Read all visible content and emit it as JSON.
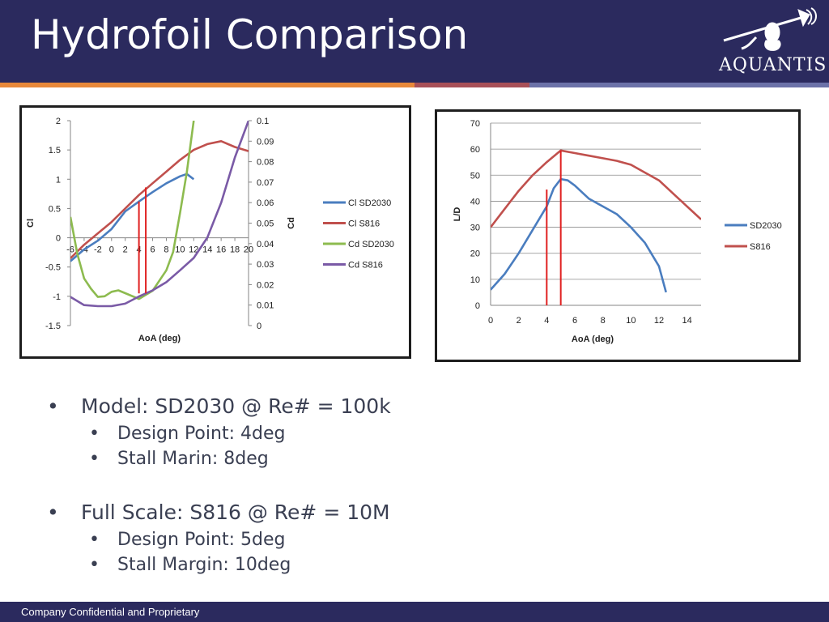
{
  "slide": {
    "title": "Hydrofoil Comparison",
    "logo_text": "AQUANTIS",
    "footer": "Company Confidential and Proprietary",
    "colors": {
      "header": "#2b2a5e",
      "stripe_orange": "#e8883a",
      "stripe_red": "#a85058",
      "stripe_blue": "#6c72a8"
    }
  },
  "bullets": [
    {
      "text": "Model: SD2030 @ Re# = 100k",
      "sub": [
        "Design Point: 4deg",
        "Stall Marin: 8deg"
      ]
    },
    {
      "text": "Full Scale: S816 @ Re# = 10M",
      "sub": [
        "Design Point: 5deg",
        "Stall Margin: 10deg"
      ]
    }
  ],
  "bullet_glyph": "•",
  "chart_data": [
    {
      "type": "line",
      "xlabel": "AoA (deg)",
      "ylabel": "Cl",
      "y2label": "Cd",
      "xlim": [
        -6,
        20
      ],
      "ylim": [
        -1.5,
        2
      ],
      "y2lim": [
        0,
        0.1
      ],
      "x_ticks": [
        "-6",
        "-4",
        "-2",
        "0",
        "2",
        "4",
        "6",
        "8",
        "10",
        "12",
        "14",
        "16",
        "18",
        "20"
      ],
      "y_ticks": [
        "2",
        "1.5",
        "1",
        "0.5",
        "0",
        "-0.5",
        "-1",
        "-1.5"
      ],
      "y2_ticks": [
        "0.1",
        "0.09",
        "0.08",
        "0.07",
        "0.06",
        "0.05",
        "0.04",
        "0.03",
        "0.02",
        "0.01",
        "0"
      ],
      "legend_position": "right",
      "grid": false,
      "series": [
        {
          "name": "Cl SD2030",
          "axis": "left",
          "color": "#4a7dbf",
          "points": [
            [
              -6,
              -0.4
            ],
            [
              -4,
              -0.2
            ],
            [
              -2,
              -0.05
            ],
            [
              0,
              0.15
            ],
            [
              1,
              0.3
            ],
            [
              2,
              0.45
            ],
            [
              4,
              0.62
            ],
            [
              6,
              0.78
            ],
            [
              8,
              0.93
            ],
            [
              10,
              1.05
            ],
            [
              11,
              1.09
            ],
            [
              12,
              1.0
            ]
          ]
        },
        {
          "name": "Cl S816",
          "axis": "left",
          "color": "#c0504d",
          "points": [
            [
              -6,
              -0.35
            ],
            [
              -4,
              -0.12
            ],
            [
              0,
              0.27
            ],
            [
              4,
              0.73
            ],
            [
              6,
              0.93
            ],
            [
              8,
              1.13
            ],
            [
              10,
              1.33
            ],
            [
              12,
              1.5
            ],
            [
              14,
              1.6
            ],
            [
              16,
              1.65
            ],
            [
              18,
              1.55
            ],
            [
              20,
              1.48
            ]
          ]
        },
        {
          "name": "Cd SD2030",
          "axis": "right",
          "color": "#8dbb4f",
          "points": [
            [
              -6,
              0.053
            ],
            [
              -5,
              0.035
            ],
            [
              -4,
              0.023
            ],
            [
              -3,
              0.018
            ],
            [
              -2,
              0.014
            ],
            [
              -1,
              0.0143
            ],
            [
              0,
              0.0165
            ],
            [
              1,
              0.0172
            ],
            [
              2,
              0.0158
            ],
            [
              4,
              0.013
            ],
            [
              6,
              0.017
            ],
            [
              8,
              0.027
            ],
            [
              9,
              0.036
            ],
            [
              10,
              0.055
            ],
            [
              11,
              0.075
            ],
            [
              12,
              0.1
            ]
          ]
        },
        {
          "name": "Cd S816",
          "axis": "right",
          "color": "#7a5aa6",
          "points": [
            [
              -6,
              0.014
            ],
            [
              -4,
              0.01
            ],
            [
              -2,
              0.0095
            ],
            [
              0,
              0.0095
            ],
            [
              2,
              0.0107
            ],
            [
              4,
              0.0142
            ],
            [
              6,
              0.0172
            ],
            [
              8,
              0.0212
            ],
            [
              10,
              0.027
            ],
            [
              12,
              0.033
            ],
            [
              14,
              0.043
            ],
            [
              16,
              0.06
            ],
            [
              18,
              0.082
            ],
            [
              20,
              0.1
            ]
          ]
        }
      ],
      "markers": [
        {
          "x": 4,
          "y_from": -0.95,
          "y_to": 0.62,
          "color": "#e02020"
        },
        {
          "x": 5,
          "y_from": -0.95,
          "y_to": 0.86,
          "color": "#e02020"
        }
      ]
    },
    {
      "type": "line",
      "xlabel": "AoA (deg)",
      "ylabel": "L/D",
      "xlim": [
        0,
        15
      ],
      "ylim": [
        0,
        70
      ],
      "x_ticks": [
        "0",
        "2",
        "4",
        "6",
        "8",
        "10",
        "12",
        "14"
      ],
      "y_ticks": [
        "70",
        "60",
        "50",
        "40",
        "30",
        "20",
        "10",
        "0"
      ],
      "legend_position": "right",
      "grid": true,
      "series": [
        {
          "name": "SD2030",
          "color": "#4a7dbf",
          "points": [
            [
              0,
              6
            ],
            [
              1,
              12
            ],
            [
              2,
              20
            ],
            [
              3,
              29
            ],
            [
              4,
              38
            ],
            [
              4.5,
              45
            ],
            [
              5,
              48.5
            ],
            [
              5.5,
              48
            ],
            [
              6,
              46
            ],
            [
              7,
              41
            ],
            [
              8,
              38
            ],
            [
              9,
              35
            ],
            [
              10,
              30
            ],
            [
              11,
              24
            ],
            [
              12,
              15
            ],
            [
              12.5,
              5
            ]
          ]
        },
        {
          "name": "S816",
          "color": "#c0504d",
          "points": [
            [
              0,
              30
            ],
            [
              1,
              37
            ],
            [
              2,
              44
            ],
            [
              3,
              50
            ],
            [
              4,
              55
            ],
            [
              5,
              59.5
            ],
            [
              6,
              58.5
            ],
            [
              7,
              57.5
            ],
            [
              8,
              56.5
            ],
            [
              9,
              55.5
            ],
            [
              10,
              54
            ],
            [
              11,
              51
            ],
            [
              12,
              48
            ],
            [
              13,
              43
            ],
            [
              14,
              38
            ],
            [
              15,
              33
            ]
          ]
        }
      ],
      "markers": [
        {
          "x": 4,
          "y_from": 0,
          "y_to": 44.5,
          "color": "#e02020"
        },
        {
          "x": 5,
          "y_from": 0,
          "y_to": 59.5,
          "color": "#e02020"
        }
      ]
    }
  ]
}
